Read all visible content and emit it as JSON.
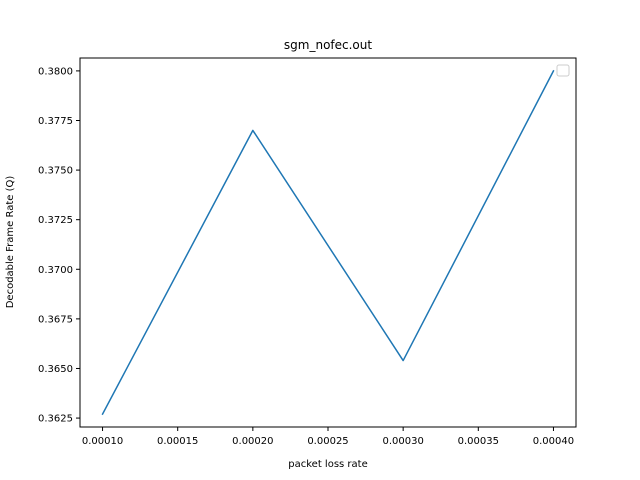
{
  "chart_data": {
    "type": "line",
    "title": "sgm_nofec.out",
    "xlabel": "packet loss rate",
    "ylabel": "Decodable Frame Rate (Q)",
    "x": [
      0.0001,
      0.0002,
      0.0003,
      0.0004
    ],
    "series": [
      {
        "values": [
          0.3627,
          0.377,
          0.3654,
          0.38
        ],
        "color": "#1f77b4"
      }
    ],
    "xlim": [
      8.5e-05,
      0.000415
    ],
    "ylim": [
      0.36205,
      0.38065
    ],
    "xticks": [
      "0.00010",
      "0.00015",
      "0.00020",
      "0.00025",
      "0.00030",
      "0.00035",
      "0.00040"
    ],
    "xtick_values": [
      0.0001,
      0.00015,
      0.0002,
      0.00025,
      0.0003,
      0.00035,
      0.0004
    ],
    "yticks": [
      "0.3625",
      "0.3650",
      "0.3675",
      "0.3700",
      "0.3725",
      "0.3750",
      "0.3775",
      "0.3800"
    ],
    "ytick_values": [
      0.3625,
      0.365,
      0.3675,
      0.37,
      0.3725,
      0.375,
      0.3775,
      0.38
    ],
    "grid": false,
    "legend": {
      "position": "top-right",
      "entries": []
    }
  }
}
